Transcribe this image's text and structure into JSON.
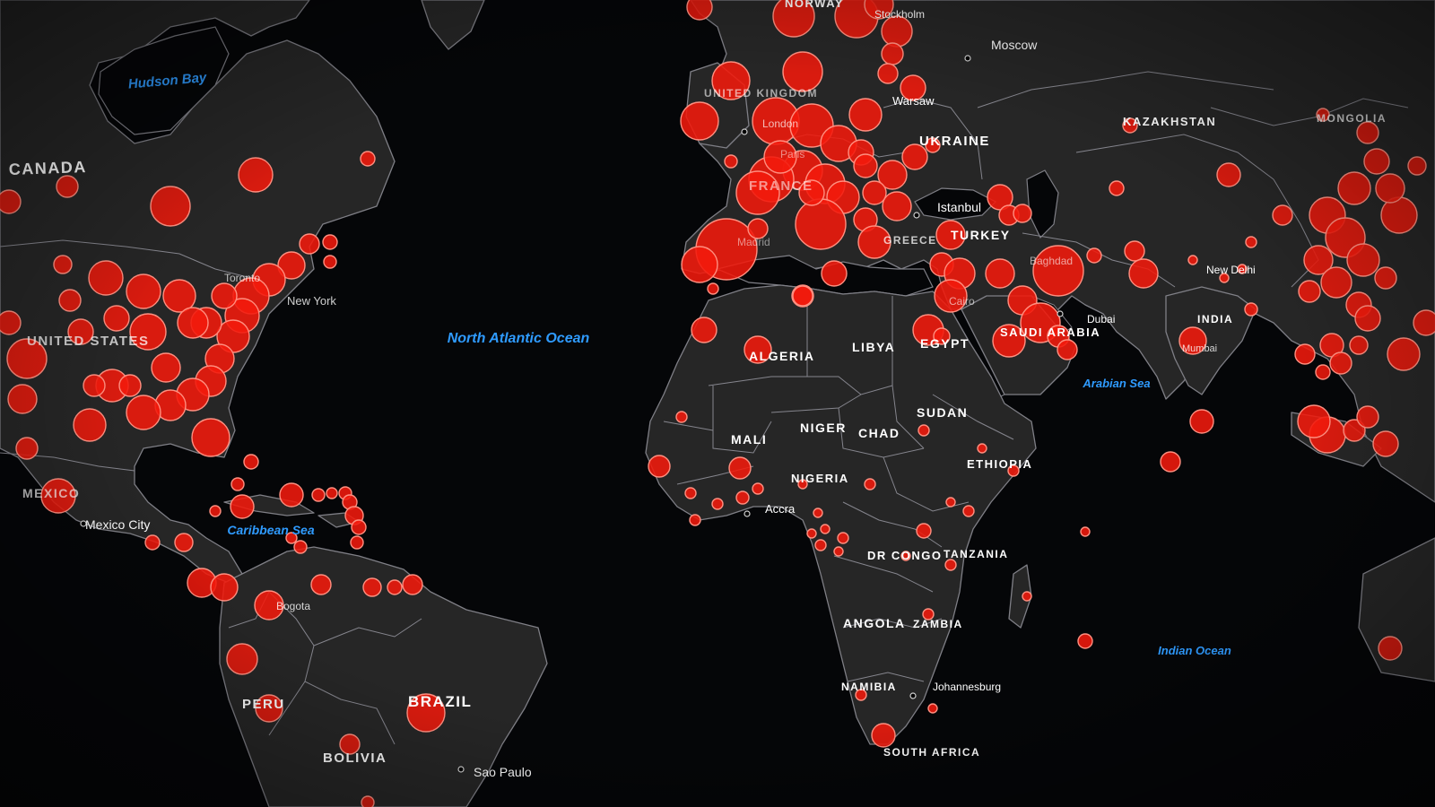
{
  "map": {
    "colors": {
      "ocean": "#050608",
      "land": "#262626",
      "border": "#85858d",
      "bubble_fill": "#f21a0c",
      "bubble_stroke": "#ff8f80",
      "country_label": "#ffffff",
      "sea_label": "#2f9bff"
    },
    "country_labels": [
      "CANADA",
      "UNITED STATES",
      "MEXICO",
      "PERU",
      "BOLIVIA",
      "BRAZIL",
      "UNITED KINGDOM",
      "FRANCE",
      "NORWAY",
      "UKRAINE",
      "KAZAKHSTAN",
      "MONGOLIA",
      "TURKEY",
      "GREECE",
      "ALGERIA",
      "LIBYA",
      "EGYPT",
      "SAUDI ARABIA",
      "MALI",
      "NIGER",
      "CHAD",
      "SUDAN",
      "NIGERIA",
      "ETHIOPIA",
      "DR CONGO",
      "TANZANIA",
      "ANGOLA",
      "ZAMBIA",
      "NAMIBIA",
      "SOUTH AFRICA",
      "INDIA"
    ],
    "city_labels": [
      "Stockholm",
      "Moscow",
      "Warsaw",
      "London",
      "Paris",
      "Madrid",
      "Istanbul",
      "Baghdad",
      "Cairo",
      "Dubai",
      "New Delhi",
      "Mumbai",
      "Accra",
      "Johannesburg",
      "Sao Paulo",
      "Mexico City",
      "Bogota",
      "Toronto",
      "New York"
    ],
    "sea_labels": [
      "Hudson Bay",
      "North Atlantic Ocean",
      "Caribbean Sea",
      "Arabian Sea",
      "Indian Ocean"
    ]
  }
}
